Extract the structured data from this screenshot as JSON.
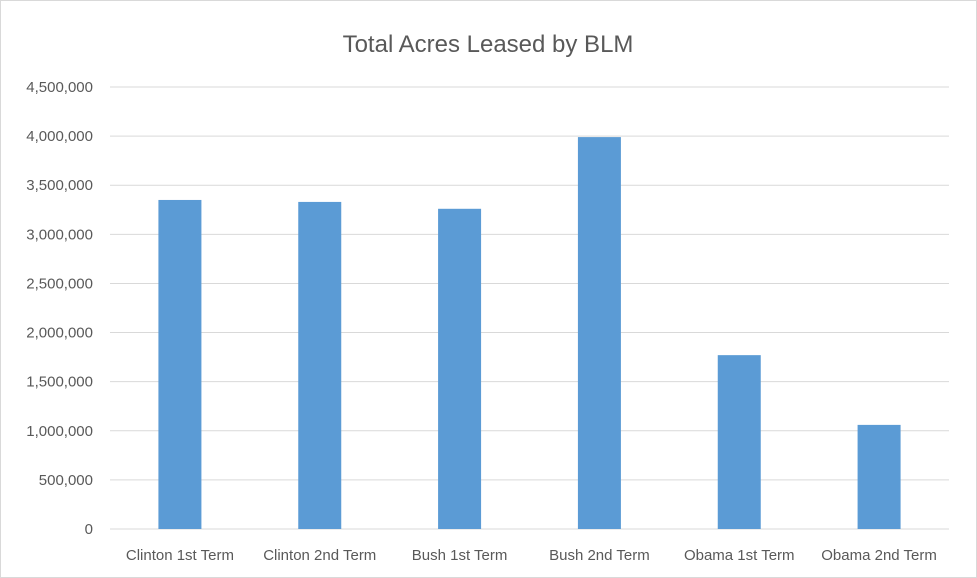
{
  "chart_data": {
    "type": "bar",
    "title": "Total Acres Leased by BLM",
    "xlabel": "",
    "ylabel": "",
    "categories": [
      "Clinton 1st Term",
      "Clinton 2nd Term",
      "Bush 1st Term",
      "Bush 2nd Term",
      "Obama 1st Term",
      "Obama 2nd Term"
    ],
    "values": [
      3350000,
      3330000,
      3260000,
      3990000,
      1770000,
      1060000
    ],
    "ylim": [
      0,
      4500000
    ],
    "yticks": [
      0,
      500000,
      1000000,
      1500000,
      2000000,
      2500000,
      3000000,
      3500000,
      4000000,
      4500000
    ],
    "ytick_labels": [
      "0",
      "500,000",
      "1,000,000",
      "1,500,000",
      "2,000,000",
      "2,500,000",
      "3,000,000",
      "3,500,000",
      "4,000,000",
      "4,500,000"
    ],
    "grid": true,
    "legend": "none",
    "bar_color": "#5b9bd5"
  }
}
